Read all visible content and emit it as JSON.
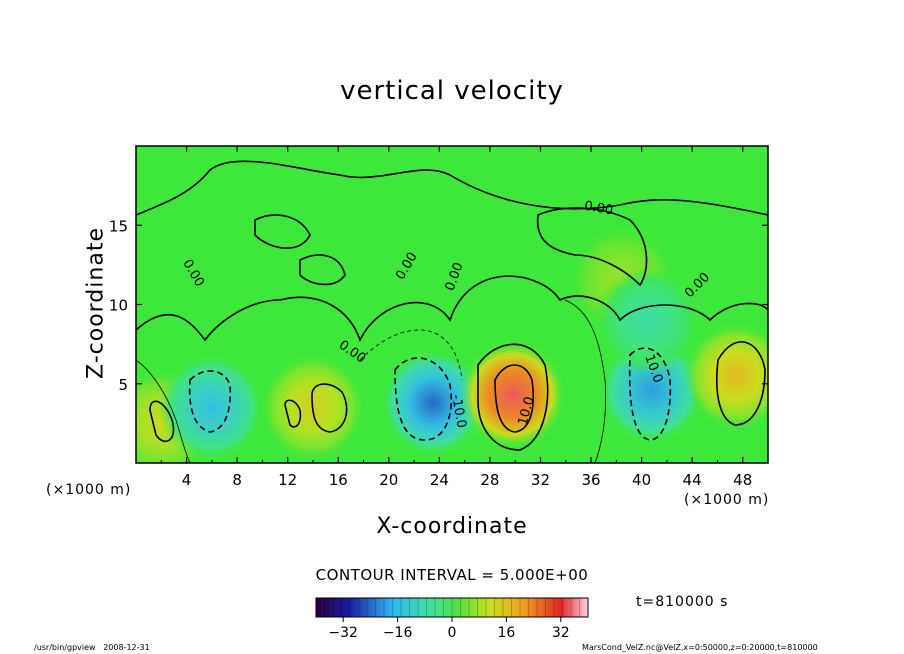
{
  "title": "vertical velocity",
  "footer": {
    "program": "/usr/bin/gpview",
    "date": "2008-12-31",
    "source": "MarsCond_VelZ.nc@VelZ,x=0:50000,z=0:20000,t=810000"
  },
  "contour_interval": "CONTOUR INTERVAL = 5.000E+00",
  "time_label": "t=810000 s",
  "chart_data": {
    "type": "heatmap",
    "title": "vertical velocity",
    "xlabel": "X-coordinate",
    "ylabel": "Z-coordinate",
    "x_unit": "(×1000 m)",
    "xlim": [
      0,
      50
    ],
    "ylim": [
      0,
      20
    ],
    "x_ticks": [
      4,
      8,
      12,
      16,
      20,
      24,
      28,
      32,
      36,
      40,
      44,
      48
    ],
    "y_ticks": [
      5,
      10,
      15
    ],
    "contour_labels": [
      "0.00",
      "0.00",
      "0.00",
      "0.00",
      "0.00",
      "0.00",
      "-10.0",
      "10.0",
      "10.0"
    ],
    "contour_interval": 5.0,
    "colorbar": {
      "ticks": [
        -32,
        -16,
        0,
        16,
        32
      ],
      "range": [
        -40,
        40
      ]
    },
    "time": "t=810000 s",
    "features": [
      {
        "x": 2.0,
        "z": 2.5,
        "value": 11
      },
      {
        "x": 6.0,
        "z": 3.5,
        "value": -16
      },
      {
        "x": 14.0,
        "z": 3.5,
        "value": 13
      },
      {
        "x": 23.5,
        "z": 3.8,
        "value": -24
      },
      {
        "x": 29.8,
        "z": 4.3,
        "value": 33
      },
      {
        "x": 40.8,
        "z": 4.6,
        "value": -20
      },
      {
        "x": 47.5,
        "z": 5.5,
        "value": 16
      },
      {
        "x": 38.5,
        "z": 11.5,
        "value": 7
      },
      {
        "x": 40.5,
        "z": 9.0,
        "value": -8
      }
    ]
  }
}
